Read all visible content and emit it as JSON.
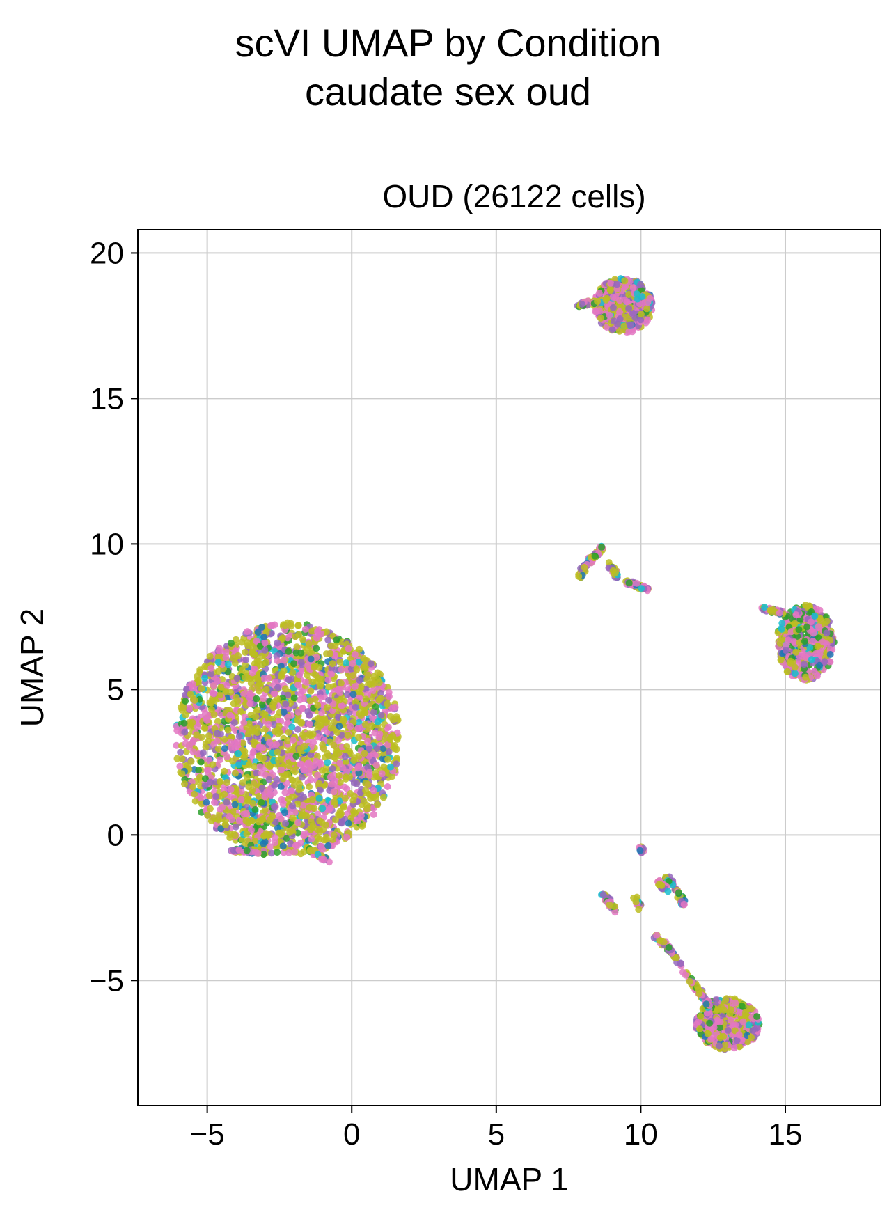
{
  "chart_data": {
    "type": "scatter",
    "suptitle": [
      "scVI UMAP by Condition",
      "caudate sex oud"
    ],
    "title": "OUD (26122 cells)",
    "xlabel": "UMAP 1",
    "ylabel": "UMAP 2",
    "xlim": [
      -7.4,
      18.3
    ],
    "ylim": [
      -9.3,
      20.8
    ],
    "xticks": [
      -5,
      0,
      5,
      10,
      15
    ],
    "yticks": [
      -5,
      0,
      5,
      10,
      15,
      20
    ],
    "xtick_labels": [
      "−5",
      "0",
      "5",
      "10",
      "15"
    ],
    "ytick_labels": [
      "−5",
      "0",
      "5",
      "10",
      "15",
      "20"
    ],
    "grid": true,
    "palette": [
      "#9467bd",
      "#e377c2",
      "#bcbd22",
      "#2ca02c",
      "#17becf",
      "#1f77b4"
    ],
    "clusters": [
      {
        "cx": -2.2,
        "cy": 3.3,
        "rx": 3.9,
        "ry": 4.0,
        "n": 2600,
        "mix": [
          0.14,
          0.28,
          0.46,
          0.05,
          0.04,
          0.03
        ]
      },
      {
        "cx": 9.4,
        "cy": 18.2,
        "rx": 1.0,
        "ry": 0.95,
        "n": 420,
        "mix": [
          0.22,
          0.42,
          0.26,
          0.04,
          0.04,
          0.02
        ]
      },
      {
        "cx": 15.7,
        "cy": 6.6,
        "rx": 1.0,
        "ry": 1.3,
        "n": 450,
        "mix": [
          0.15,
          0.35,
          0.3,
          0.12,
          0.05,
          0.03
        ]
      },
      {
        "cx": 13.0,
        "cy": -6.5,
        "rx": 1.1,
        "ry": 0.9,
        "n": 450,
        "mix": [
          0.12,
          0.38,
          0.32,
          0.1,
          0.05,
          0.03
        ]
      }
    ],
    "strands": [
      {
        "points": [
          [
            8.2,
            9.4
          ],
          [
            8.7,
            9.9
          ]
        ],
        "n": 50
      },
      {
        "points": [
          [
            7.9,
            8.9
          ],
          [
            8.1,
            9.3
          ]
        ],
        "n": 40
      },
      {
        "points": [
          [
            8.9,
            9.3
          ],
          [
            9.2,
            8.9
          ]
        ],
        "n": 25
      },
      {
        "points": [
          [
            9.5,
            8.7
          ],
          [
            10.3,
            8.4
          ]
        ],
        "n": 45
      },
      {
        "points": [
          [
            8.8,
            18.4
          ],
          [
            7.8,
            18.2
          ]
        ],
        "n": 40
      },
      {
        "points": [
          [
            14.2,
            7.8
          ],
          [
            15.0,
            7.6
          ]
        ],
        "n": 35
      },
      {
        "points": [
          [
            10.9,
            -1.4
          ],
          [
            11.5,
            -2.4
          ]
        ],
        "n": 45
      },
      {
        "points": [
          [
            10.6,
            -1.6
          ],
          [
            10.9,
            -1.9
          ]
        ],
        "n": 25
      },
      {
        "points": [
          [
            8.7,
            -2.0
          ],
          [
            9.1,
            -2.6
          ]
        ],
        "n": 40
      },
      {
        "points": [
          [
            9.8,
            -2.2
          ],
          [
            10.0,
            -2.5
          ]
        ],
        "n": 15
      },
      {
        "points": [
          [
            10.0,
            -0.4
          ],
          [
            10.05,
            -0.6
          ]
        ],
        "n": 10
      },
      {
        "points": [
          [
            10.4,
            -3.4
          ],
          [
            11.0,
            -3.9
          ],
          [
            11.9,
            -5.2
          ],
          [
            12.4,
            -5.9
          ]
        ],
        "n": 110
      },
      {
        "points": [
          [
            -4.2,
            -0.5
          ],
          [
            -3.0,
            -0.6
          ]
        ],
        "n": 40
      },
      {
        "points": [
          [
            -1.5,
            -0.5
          ],
          [
            -0.8,
            -0.9
          ]
        ],
        "n": 25
      }
    ]
  }
}
